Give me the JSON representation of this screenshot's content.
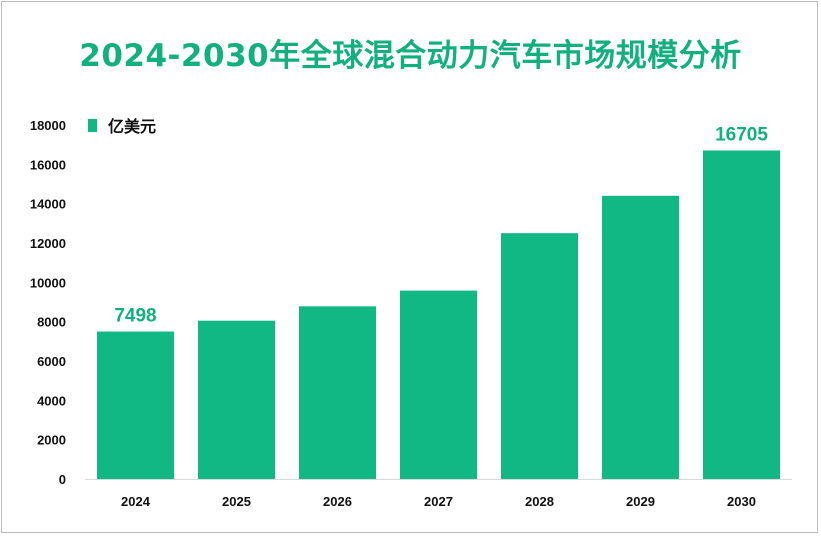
{
  "title": "2024-2030年全球混合动力汽车市场规模分析",
  "colors": {
    "bar": "#12b884",
    "title": "#12b07e",
    "label": "#12b07e",
    "axis": "#d9d9d9"
  },
  "chart_data": {
    "type": "bar",
    "categories": [
      "2024",
      "2025",
      "2026",
      "2027",
      "2028",
      "2029",
      "2030"
    ],
    "series": [
      {
        "name": "亿美元",
        "values": [
          7498,
          8050,
          8780,
          9580,
          12500,
          14400,
          16705
        ]
      }
    ],
    "data_labels": [
      {
        "category": "2024",
        "text": "7498"
      },
      {
        "category": "2030",
        "text": "16705"
      }
    ],
    "yticks": [
      0,
      2000,
      4000,
      6000,
      8000,
      10000,
      12000,
      14000,
      16000,
      18000
    ],
    "ylim": [
      0,
      18000
    ],
    "legend_position": "top-left",
    "grid": false
  }
}
